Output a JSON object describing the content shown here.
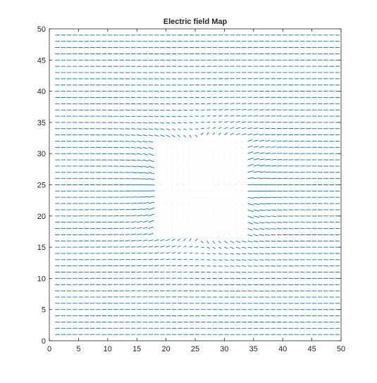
{
  "chart_data": {
    "type": "quiver",
    "title": "Electric field Map",
    "xlabel": "",
    "ylabel": "",
    "xlim": [
      0,
      50
    ],
    "ylim": [
      0,
      50
    ],
    "x_ticks": [
      0,
      5,
      10,
      15,
      20,
      25,
      30,
      35,
      40,
      45,
      50
    ],
    "y_ticks": [
      0,
      5,
      10,
      15,
      20,
      25,
      30,
      35,
      40,
      45,
      50
    ],
    "x_tick_labels": [
      "0",
      "5",
      "10",
      "15",
      "20",
      "25",
      "30",
      "35",
      "40",
      "45",
      "50"
    ],
    "y_tick_labels": [
      "0",
      "5",
      "10",
      "15",
      "20",
      "25",
      "30",
      "35",
      "40",
      "45",
      "50"
    ],
    "grid": false,
    "series_color": "#0072BD",
    "field": {
      "grid_x_range": [
        1,
        49
      ],
      "grid_y_range": [
        1,
        49
      ],
      "grid_step": 1,
      "uniform_direction": "+x",
      "obstacle_region": {
        "x_range": [
          17,
          34
        ],
        "y_range": [
          16,
          33
        ]
      },
      "description_of_behavior": "uniform rightward field distorted around a square low-field region"
    }
  }
}
